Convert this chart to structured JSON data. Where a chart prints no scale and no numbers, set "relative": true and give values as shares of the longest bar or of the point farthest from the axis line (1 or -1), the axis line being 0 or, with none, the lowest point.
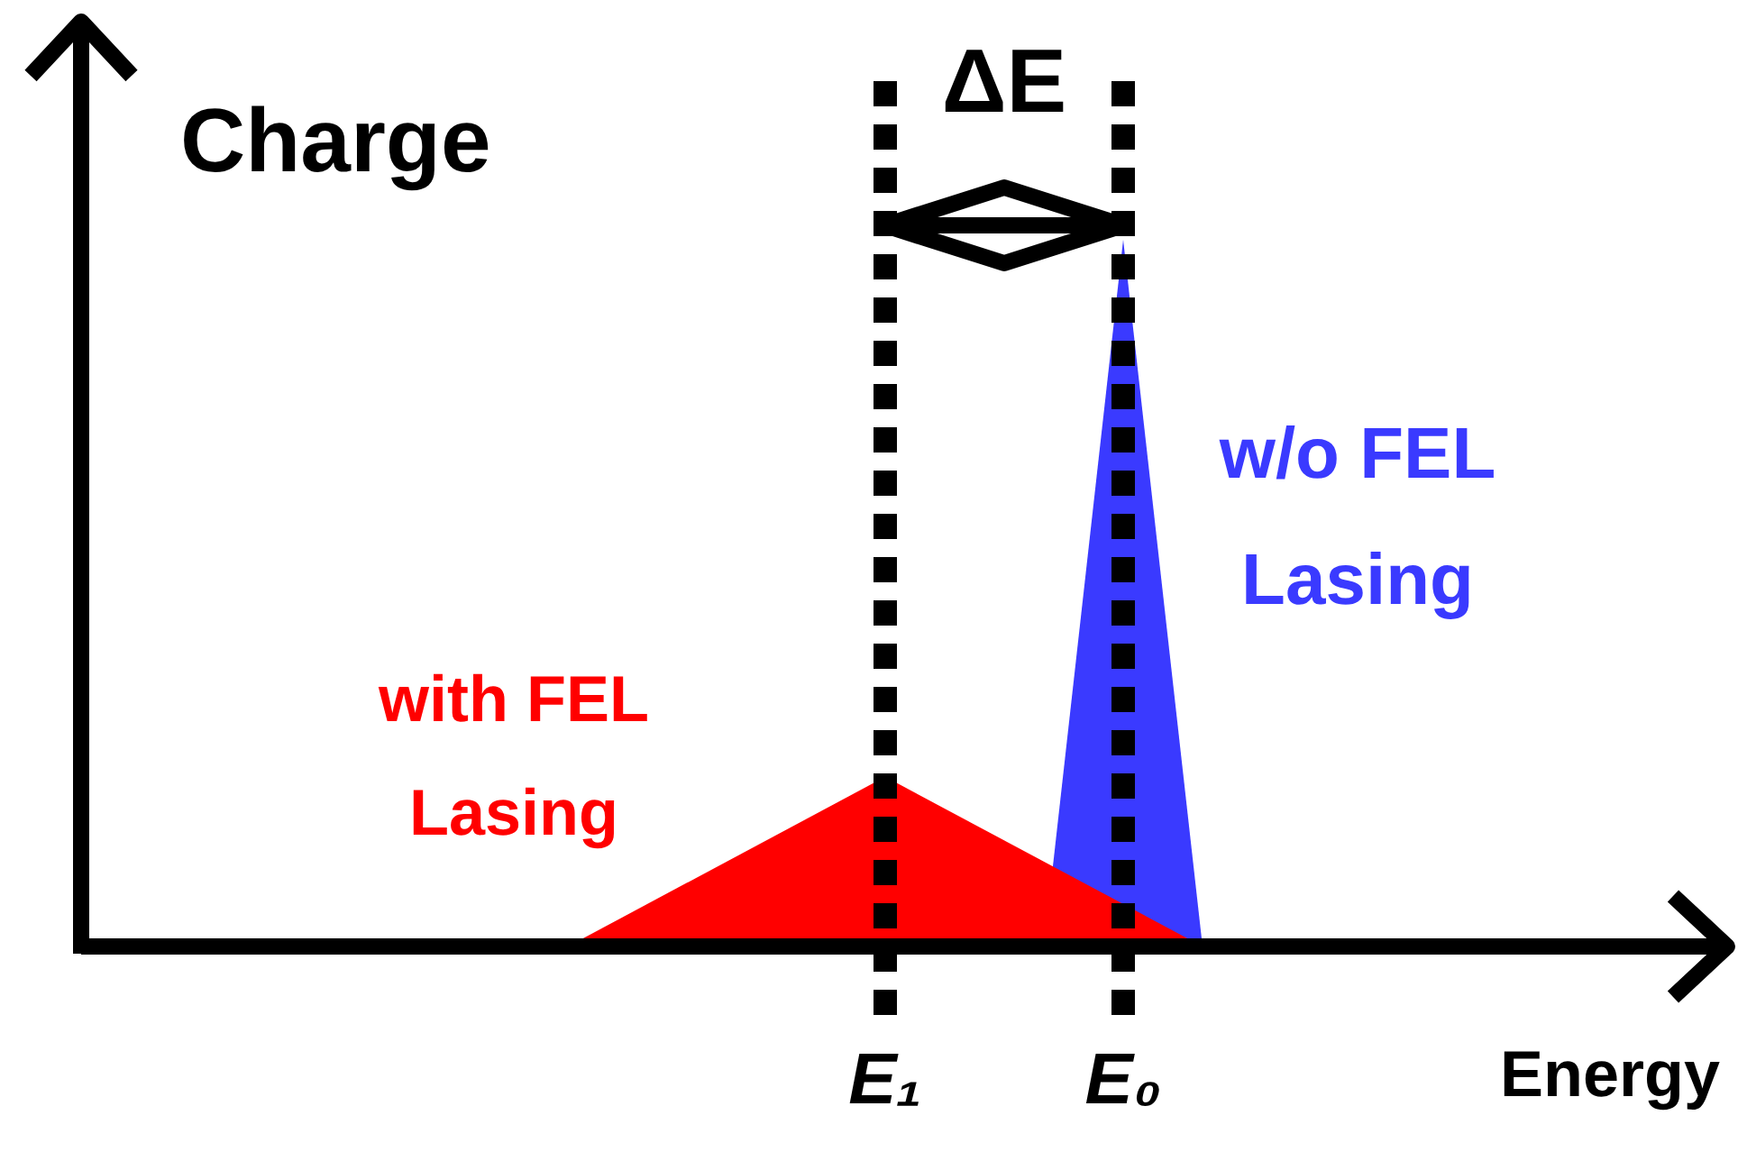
{
  "chart_data": {
    "type": "area",
    "relative": true,
    "categories": [
      null,
      null,
      null,
      null,
      null,
      null,
      null,
      null,
      null,
      null,
      "E₁",
      null,
      null,
      "E₀",
      null,
      null,
      null,
      null,
      null,
      null,
      null
    ],
    "series": [
      {
        "name": "w/o FEL Lasing",
        "color": "#3a3aff",
        "values": [
          null,
          null,
          null,
          null,
          null,
          null,
          null,
          null,
          null,
          null,
          null,
          null,
          0,
          1,
          0,
          null,
          null,
          null,
          null,
          null,
          null
        ]
      },
      {
        "name": "with FEL Lasing",
        "color": "#ff0000",
        "values": [
          null,
          null,
          null,
          null,
          null,
          null,
          0,
          null,
          null,
          null,
          0.24,
          null,
          null,
          null,
          0,
          null,
          null,
          null,
          null,
          null,
          null
        ]
      }
    ],
    "xlabel": "Energy",
    "ylabel": "Charge",
    "ref_lines": [
      {
        "axis": "x",
        "value": "E₁",
        "line_style": "dotted"
      },
      {
        "axis": "x",
        "value": "E₀",
        "line_style": "dotted"
      }
    ],
    "annotations": [
      "ΔE"
    ]
  }
}
